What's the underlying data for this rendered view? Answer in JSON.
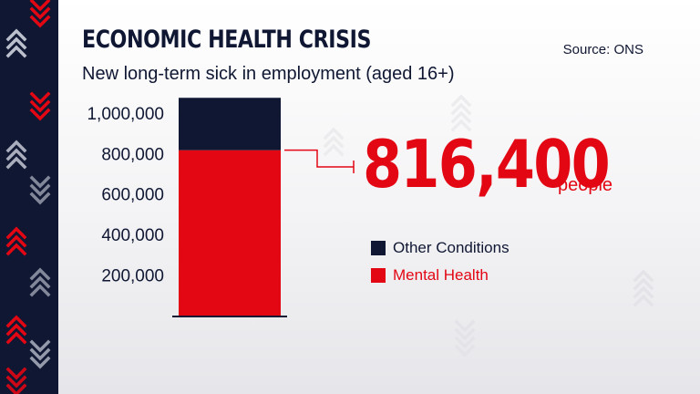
{
  "header": {
    "title": "ECONOMIC HEALTH CRISIS",
    "subtitle": "New long-term sick in employment (aged 16+)",
    "source": "Source: ONS"
  },
  "callout": {
    "value": "816,400",
    "unit": "people"
  },
  "colors": {
    "navy": "#0f1733",
    "red": "#e30613"
  },
  "chart_data": {
    "type": "bar",
    "stacked": true,
    "categories": [
      ""
    ],
    "series": [
      {
        "name": "Mental Health",
        "values": [
          816400
        ],
        "color": "#e30613"
      },
      {
        "name": "Other Conditions",
        "values": [
          258600
        ],
        "color": "#0f1733"
      }
    ],
    "y_ticks": [
      200000,
      400000,
      600000,
      800000,
      1000000
    ],
    "y_tick_labels": [
      "200,000",
      "400,000",
      "600,000",
      "800,000",
      "1,000,000"
    ],
    "ylim": [
      0,
      1000000
    ],
    "grid": false,
    "legend_position": "right"
  }
}
